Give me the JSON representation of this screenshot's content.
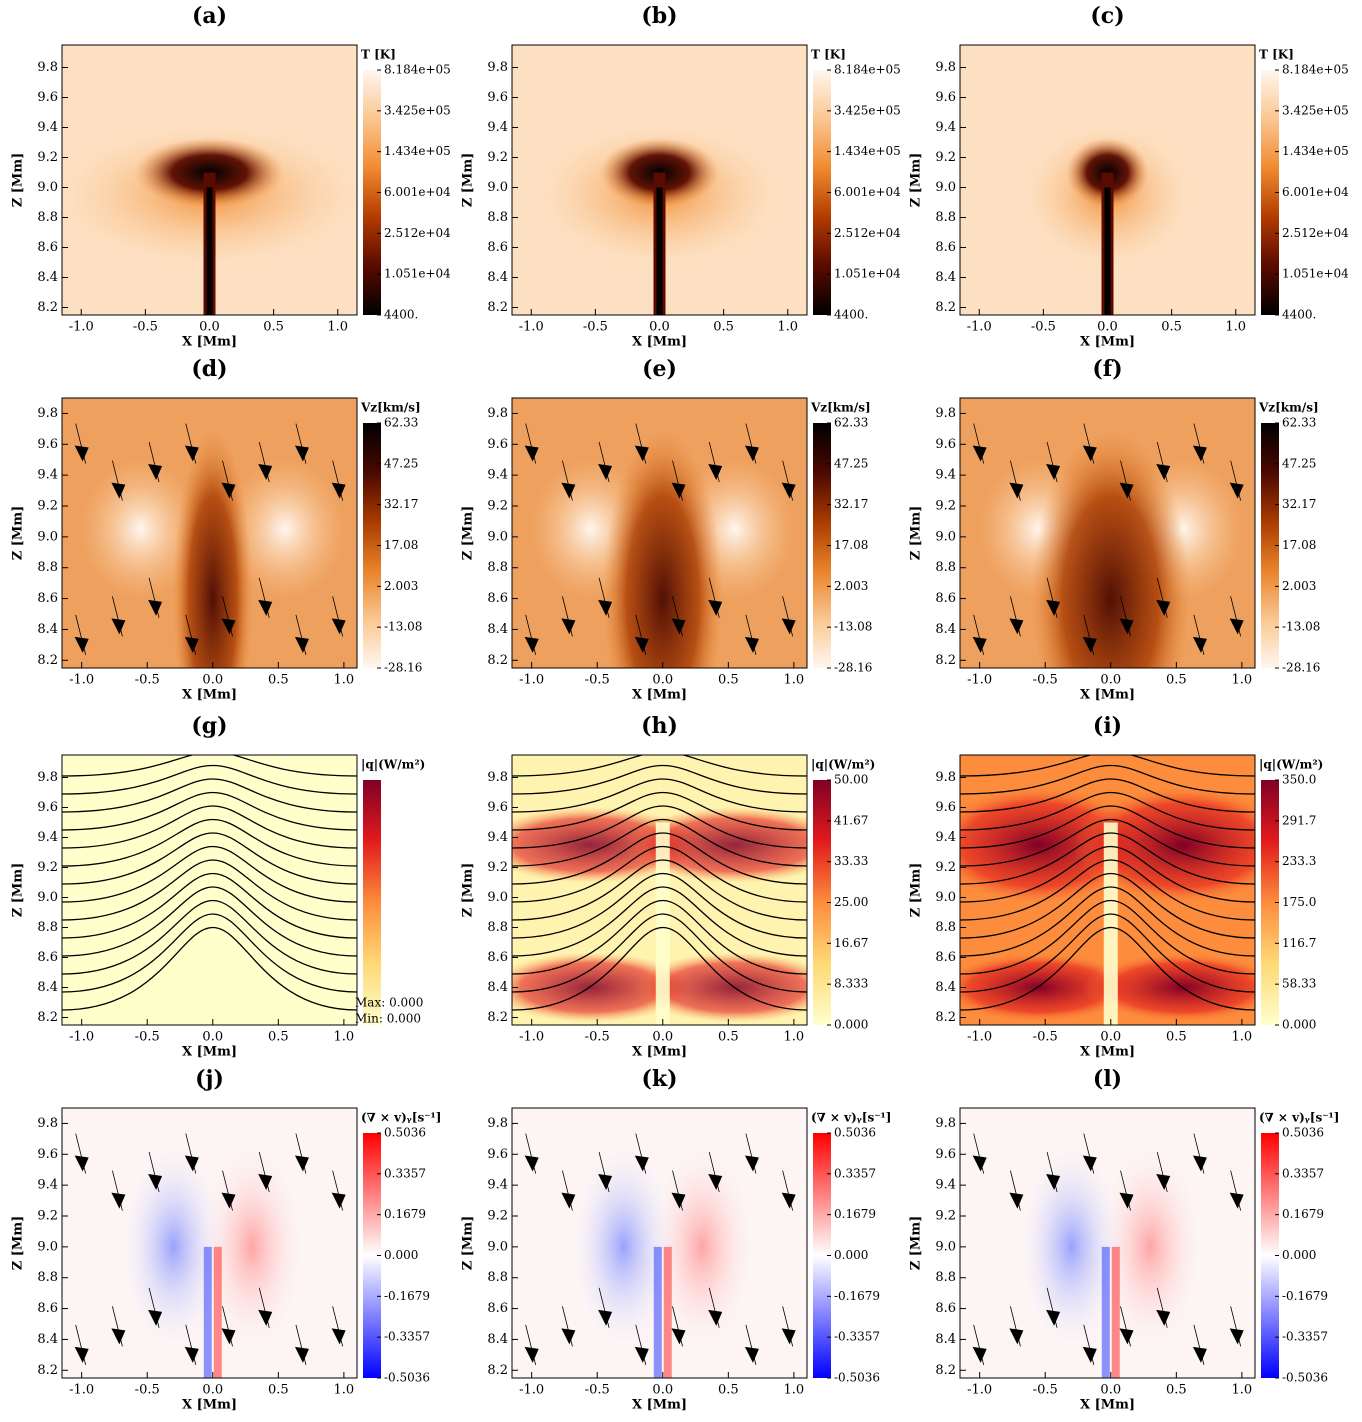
{
  "chart_data": [
    {
      "type": "heatmap",
      "title": "(a)",
      "xlabel": "X [Mm]",
      "ylabel": "Z [Mm]",
      "xlim": [
        -1.15,
        1.15
      ],
      "ylim": [
        8.15,
        9.95
      ],
      "xticks": [
        {
          "value": -1,
          "label": "-1.0"
        },
        -0.5,
        {
          "value": 0,
          "label": "0.0"
        },
        0.5,
        {
          "value": 1,
          "label": "1.0"
        }
      ],
      "yticks": [
        8.2,
        8.4,
        8.6,
        8.8,
        {
          "value": 9,
          "label": "9.0"
        },
        9.2,
        9.4,
        9.6,
        9.8
      ],
      "colorbar": {
        "label": "T [K]",
        "scale": "log",
        "lim": [
          4400,
          818400
        ],
        "colors": [
          "#000000",
          "#5a0a00",
          "#b33b00",
          "#f08a30",
          "#fbc690",
          "#fff7f0"
        ],
        "ticks": [
          {
            "value": 818400,
            "label": "8.184e+05"
          },
          {
            "value": 342500,
            "label": "3.425e+05"
          },
          {
            "value": 143400,
            "label": "1.434e+05"
          },
          {
            "value": 60010,
            "label": "6.001e+04"
          },
          {
            "value": 25120,
            "label": "2.512e+04"
          },
          {
            "value": 10510,
            "label": "1.051e+04"
          },
          {
            "value": 4400,
            "label": "4400."
          }
        ]
      }
    },
    {
      "type": "heatmap",
      "title": "(b)",
      "xlabel": "X [Mm]",
      "ylabel": "Z [Mm]",
      "xlim": [
        -1.15,
        1.15
      ],
      "ylim": [
        8.15,
        9.95
      ],
      "xticks": [
        {
          "value": -1,
          "label": "-1.0"
        },
        -0.5,
        {
          "value": 0,
          "label": "0.0"
        },
        0.5,
        {
          "value": 1,
          "label": "1.0"
        }
      ],
      "yticks": [
        8.2,
        8.4,
        8.6,
        8.8,
        {
          "value": 9,
          "label": "9.0"
        },
        9.2,
        9.4,
        9.6,
        9.8
      ],
      "colorbar": {
        "label": "T [K]",
        "scale": "log",
        "lim": [
          4400,
          818400
        ],
        "colors": [
          "#000000",
          "#5a0a00",
          "#b33b00",
          "#f08a30",
          "#fbc690",
          "#fff7f0"
        ],
        "ticks": [
          {
            "value": 818400,
            "label": "8.184e+05"
          },
          {
            "value": 342500,
            "label": "3.425e+05"
          },
          {
            "value": 143400,
            "label": "1.434e+05"
          },
          {
            "value": 60010,
            "label": "6.001e+04"
          },
          {
            "value": 25120,
            "label": "2.512e+04"
          },
          {
            "value": 10510,
            "label": "1.051e+04"
          },
          {
            "value": 4400,
            "label": "4400."
          }
        ]
      }
    },
    {
      "type": "heatmap",
      "title": "(c)",
      "xlabel": "X [Mm]",
      "ylabel": "Z [Mm]",
      "xlim": [
        -1.15,
        1.15
      ],
      "ylim": [
        8.15,
        9.95
      ],
      "xticks": [
        {
          "value": -1,
          "label": "-1.0"
        },
        -0.5,
        {
          "value": 0,
          "label": "0.0"
        },
        0.5,
        {
          "value": 1,
          "label": "1.0"
        }
      ],
      "yticks": [
        8.2,
        8.4,
        8.6,
        8.8,
        {
          "value": 9,
          "label": "9.0"
        },
        9.2,
        9.4,
        9.6,
        9.8
      ],
      "colorbar": {
        "label": "T [K]",
        "scale": "log",
        "lim": [
          4400,
          818400
        ],
        "colors": [
          "#000000",
          "#5a0a00",
          "#b33b00",
          "#f08a30",
          "#fbc690",
          "#fff7f0"
        ],
        "ticks": [
          {
            "value": 818400,
            "label": "8.184e+05"
          },
          {
            "value": 342500,
            "label": "3.425e+05"
          },
          {
            "value": 143400,
            "label": "1.434e+05"
          },
          {
            "value": 60010,
            "label": "6.001e+04"
          },
          {
            "value": 25120,
            "label": "2.512e+04"
          },
          {
            "value": 10510,
            "label": "1.051e+04"
          },
          {
            "value": 4400,
            "label": "4400."
          }
        ]
      }
    },
    {
      "type": "heatmap",
      "title": "(d)",
      "xlabel": "X [Mm]",
      "ylabel": "Z [Mm]",
      "xlim": [
        -1.15,
        1.1
      ],
      "ylim": [
        8.15,
        9.9
      ],
      "xticks": [
        {
          "value": -1,
          "label": "-1.0"
        },
        -0.5,
        {
          "value": 0,
          "label": "0.0"
        },
        0.5,
        {
          "value": 1,
          "label": "1.0"
        }
      ],
      "yticks": [
        8.2,
        8.4,
        8.6,
        8.8,
        {
          "value": 9,
          "label": "9.0"
        },
        9.2,
        9.4,
        9.6,
        9.8
      ],
      "colorbar": {
        "label": "Vz[km/s]",
        "scale": "linear",
        "lim": [
          -28.16,
          62.33
        ],
        "colors": [
          "#fff7f0",
          "#fbc690",
          "#e8822a",
          "#a83a00",
          "#4a0800",
          "#000000"
        ],
        "ticks": [
          62.33,
          47.25,
          32.17,
          17.08,
          2.003,
          -13.08,
          -28.16
        ]
      }
    },
    {
      "type": "heatmap",
      "title": "(e)",
      "xlabel": "X [Mm]",
      "ylabel": "Z [Mm]",
      "xlim": [
        -1.15,
        1.1
      ],
      "ylim": [
        8.15,
        9.9
      ],
      "xticks": [
        {
          "value": -1,
          "label": "-1.0"
        },
        -0.5,
        {
          "value": 0,
          "label": "0.0"
        },
        0.5,
        {
          "value": 1,
          "label": "1.0"
        }
      ],
      "yticks": [
        8.2,
        8.4,
        8.6,
        8.8,
        {
          "value": 9,
          "label": "9.0"
        },
        9.2,
        9.4,
        9.6,
        9.8
      ],
      "colorbar": {
        "label": "Vz[km/s]",
        "scale": "linear",
        "lim": [
          -28.16,
          62.33
        ],
        "colors": [
          "#fff7f0",
          "#fbc690",
          "#e8822a",
          "#a83a00",
          "#4a0800",
          "#000000"
        ],
        "ticks": [
          62.33,
          47.25,
          32.17,
          17.08,
          2.003,
          -13.08,
          -28.16
        ]
      }
    },
    {
      "type": "heatmap",
      "title": "(f)",
      "xlabel": "X [Mm]",
      "ylabel": "Z [Mm]",
      "xlim": [
        -1.15,
        1.1
      ],
      "ylim": [
        8.15,
        9.9
      ],
      "xticks": [
        {
          "value": -1,
          "label": "-1.0"
        },
        -0.5,
        {
          "value": 0,
          "label": "0.0"
        },
        0.5,
        {
          "value": 1,
          "label": "1.0"
        }
      ],
      "yticks": [
        8.2,
        8.4,
        8.6,
        8.8,
        {
          "value": 9,
          "label": "9.0"
        },
        9.2,
        9.4,
        9.6,
        9.8
      ],
      "colorbar": {
        "label": "Vz[km/s]",
        "scale": "linear",
        "lim": [
          -28.16,
          62.33
        ],
        "colors": [
          "#fff7f0",
          "#fbc690",
          "#e8822a",
          "#a83a00",
          "#4a0800",
          "#000000"
        ],
        "ticks": [
          62.33,
          47.25,
          32.17,
          17.08,
          2.003,
          -13.08,
          -28.16
        ]
      }
    },
    {
      "type": "heatmap",
      "title": "(g)",
      "xlabel": "X [Mm]",
      "ylabel": "Z [Mm]",
      "xlim": [
        -1.15,
        1.1
      ],
      "ylim": [
        8.15,
        9.95
      ],
      "xticks": [
        {
          "value": -1,
          "label": "-1.0"
        },
        -0.5,
        {
          "value": 0,
          "label": "0.0"
        },
        0.5,
        {
          "value": 1,
          "label": "1.0"
        }
      ],
      "yticks": [
        8.2,
        8.4,
        8.6,
        8.8,
        {
          "value": 9,
          "label": "9.0"
        },
        9.2,
        9.4,
        9.6,
        9.8
      ],
      "annotations": [
        "Max:  0.000",
        "Min:  0.000"
      ],
      "colorbar": {
        "label": "|q|(W/m²)",
        "scale": "linear",
        "colors": [
          "#ffffcc",
          "#fed976",
          "#fd8d3c",
          "#e31a1c",
          "#800026"
        ],
        "ticks": []
      }
    },
    {
      "type": "heatmap",
      "title": "(h)",
      "xlabel": "X [Mm]",
      "ylabel": "Z [Mm]",
      "xlim": [
        -1.15,
        1.1
      ],
      "ylim": [
        8.15,
        9.95
      ],
      "xticks": [
        {
          "value": -1,
          "label": "-1.0"
        },
        -0.5,
        {
          "value": 0,
          "label": "0.0"
        },
        0.5,
        {
          "value": 1,
          "label": "1.0"
        }
      ],
      "yticks": [
        8.2,
        8.4,
        8.6,
        8.8,
        {
          "value": 9,
          "label": "9.0"
        },
        9.2,
        9.4,
        9.6,
        9.8
      ],
      "colorbar": {
        "label": "|q|(W/m²)",
        "scale": "linear",
        "lim": [
          0,
          50
        ],
        "colors": [
          "#ffffcc",
          "#fed976",
          "#fd8d3c",
          "#e31a1c",
          "#800026"
        ],
        "ticks": [
          {
            "value": 50,
            "label": "50.00"
          },
          41.67,
          33.33,
          {
            "value": 25,
            "label": "25.00"
          },
          16.67,
          8.333,
          {
            "value": 0,
            "label": "0.000"
          }
        ]
      }
    },
    {
      "type": "heatmap",
      "title": "(i)",
      "xlabel": "X [Mm]",
      "ylabel": "Z [Mm]",
      "xlim": [
        -1.15,
        1.1
      ],
      "ylim": [
        8.15,
        9.95
      ],
      "xticks": [
        {
          "value": -1,
          "label": "-1.0"
        },
        -0.5,
        {
          "value": 0,
          "label": "0.0"
        },
        0.5,
        {
          "value": 1,
          "label": "1.0"
        }
      ],
      "yticks": [
        8.2,
        8.4,
        8.6,
        8.8,
        {
          "value": 9,
          "label": "9.0"
        },
        9.2,
        9.4,
        9.6,
        9.8
      ],
      "colorbar": {
        "label": "|q|(W/m²)",
        "scale": "linear",
        "lim": [
          0,
          350
        ],
        "colors": [
          "#ffffcc",
          "#fed976",
          "#fd8d3c",
          "#e31a1c",
          "#800026"
        ],
        "ticks": [
          {
            "value": 350,
            "label": "350.0"
          },
          291.7,
          233.3,
          {
            "value": 175,
            "label": "175.0"
          },
          116.7,
          58.33,
          {
            "value": 0,
            "label": "0.000"
          }
        ]
      }
    },
    {
      "type": "heatmap",
      "title": "(j)",
      "xlabel": "X [Mm]",
      "ylabel": "Z [Mm]",
      "xlim": [
        -1.15,
        1.1
      ],
      "ylim": [
        8.15,
        9.9
      ],
      "xticks": [
        {
          "value": -1,
          "label": "-1.0"
        },
        -0.5,
        {
          "value": 0,
          "label": "0.0"
        },
        0.5,
        {
          "value": 1,
          "label": "1.0"
        }
      ],
      "yticks": [
        8.2,
        8.4,
        8.6,
        8.8,
        {
          "value": 9,
          "label": "9.0"
        },
        9.2,
        9.4,
        9.6,
        9.8
      ],
      "colorbar": {
        "label": "(∇ × v)ᵧ[s⁻¹]",
        "scale": "linear",
        "lim": [
          -0.5036,
          0.5036
        ],
        "colors": [
          "#0000ff",
          "#ffffff",
          "#ff0000"
        ],
        "ticks": [
          0.5036,
          0.3357,
          0.1679,
          {
            "value": 0,
            "label": "0.000"
          },
          -0.1679,
          -0.3357,
          -0.5036
        ]
      }
    },
    {
      "type": "heatmap",
      "title": "(k)",
      "xlabel": "X [Mm]",
      "ylabel": "Z [Mm]",
      "xlim": [
        -1.15,
        1.1
      ],
      "ylim": [
        8.15,
        9.9
      ],
      "xticks": [
        {
          "value": -1,
          "label": "-1.0"
        },
        -0.5,
        {
          "value": 0,
          "label": "0.0"
        },
        0.5,
        {
          "value": 1,
          "label": "1.0"
        }
      ],
      "yticks": [
        8.2,
        8.4,
        8.6,
        8.8,
        {
          "value": 9,
          "label": "9.0"
        },
        9.2,
        9.4,
        9.6,
        9.8
      ],
      "colorbar": {
        "label": "(∇ × v)ᵧ[s⁻¹]",
        "scale": "linear",
        "lim": [
          -0.5036,
          0.5036
        ],
        "colors": [
          "#0000ff",
          "#ffffff",
          "#ff0000"
        ],
        "ticks": [
          0.5036,
          0.3357,
          0.1679,
          {
            "value": 0,
            "label": "0.000"
          },
          -0.1679,
          -0.3357,
          -0.5036
        ]
      }
    },
    {
      "type": "heatmap",
      "title": "(l)",
      "xlabel": "X [Mm]",
      "ylabel": "Z [Mm]",
      "xlim": [
        -1.15,
        1.1
      ],
      "ylim": [
        8.15,
        9.9
      ],
      "xticks": [
        {
          "value": -1,
          "label": "-1.0"
        },
        -0.5,
        {
          "value": 0,
          "label": "0.0"
        },
        0.5,
        {
          "value": 1,
          "label": "1.0"
        }
      ],
      "yticks": [
        8.2,
        8.4,
        8.6,
        8.8,
        {
          "value": 9,
          "label": "9.0"
        },
        9.2,
        9.4,
        9.6,
        9.8
      ],
      "colorbar": {
        "label": "(∇ × v)ᵧ[s⁻¹]",
        "scale": "linear",
        "lim": [
          -0.5036,
          0.5036
        ],
        "colors": [
          "#0000ff",
          "#ffffff",
          "#ff0000"
        ],
        "ticks": [
          0.5036,
          0.3357,
          0.1679,
          {
            "value": 0,
            "label": "0.000"
          },
          -0.1679,
          -0.3357,
          -0.5036
        ]
      }
    }
  ]
}
